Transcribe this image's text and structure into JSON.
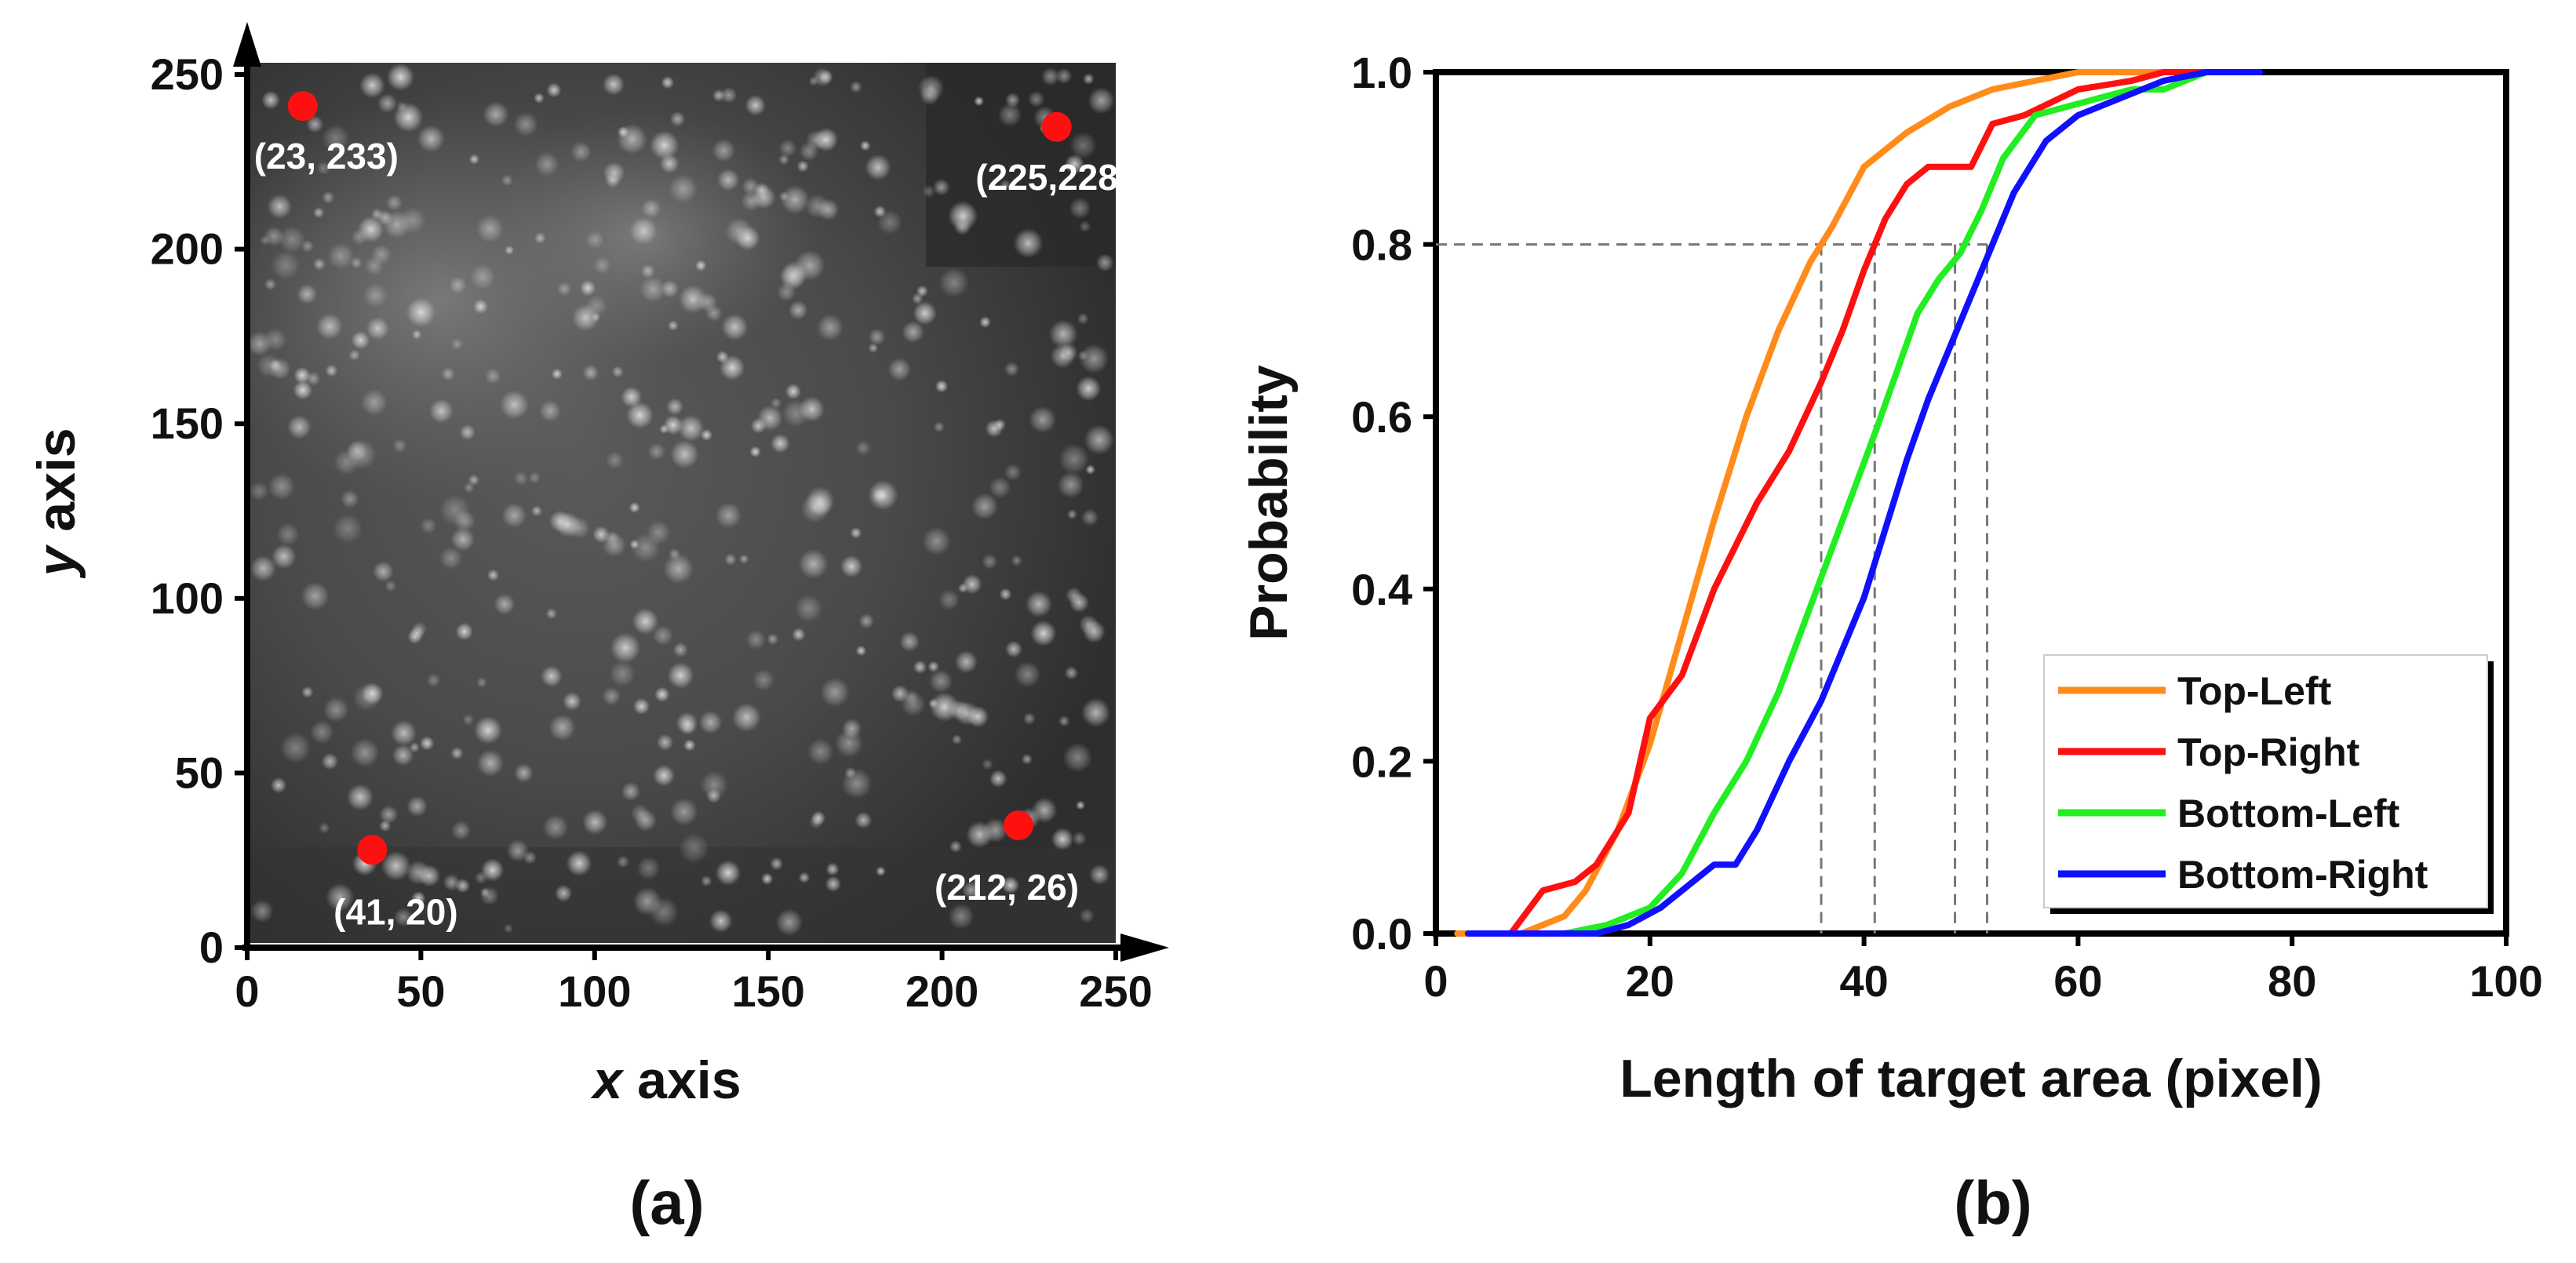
{
  "chart_data": [
    {
      "type": "scatter",
      "panel_label": "(a)",
      "xlabel_var": "x",
      "xlabel_rest": " axis",
      "ylabel_var": "y",
      "ylabel_rest": " axis",
      "xlim": [
        0,
        250
      ],
      "ylim": [
        0,
        250
      ],
      "xticks": [
        0,
        50,
        100,
        150,
        200,
        250
      ],
      "yticks": [
        0,
        50,
        100,
        150,
        200,
        250
      ],
      "background": "grayscale fluorescence microscopy image with bright spots",
      "points": [
        {
          "x": 16,
          "y": 241,
          "label": "(23, 233)"
        },
        {
          "x": 233,
          "y": 235,
          "label": "(225,228)"
        },
        {
          "x": 36,
          "y": 28,
          "label": "(41, 20)"
        },
        {
          "x": 222,
          "y": 35,
          "label": "(212, 26)"
        }
      ],
      "point_color": "#ff1010"
    },
    {
      "type": "line",
      "panel_label": "(b)",
      "xlabel": "Length of target area (pixel)",
      "ylabel": "Probability",
      "xlim": [
        0,
        100
      ],
      "ylim": [
        0,
        1.0
      ],
      "xticks": [
        "0",
        "20",
        "40",
        "60",
        "80",
        "100"
      ],
      "yticks": [
        "0.0",
        "0.2",
        "0.4",
        "0.6",
        "0.8",
        "1.0"
      ],
      "reference_level": 0.8,
      "reference_x": [
        36,
        41,
        48.5,
        51.5
      ],
      "legend_position": "bottom-right",
      "series": [
        {
          "name": "Top-Left",
          "color": "#ff8c1a",
          "points": [
            [
              2,
              0
            ],
            [
              8,
              0
            ],
            [
              12,
              0.02
            ],
            [
              14,
              0.05
            ],
            [
              17,
              0.12
            ],
            [
              20,
              0.22
            ],
            [
              23,
              0.35
            ],
            [
              26,
              0.48
            ],
            [
              29,
              0.6
            ],
            [
              32,
              0.7
            ],
            [
              35,
              0.78
            ],
            [
              37,
              0.82
            ],
            [
              40,
              0.89
            ],
            [
              44,
              0.93
            ],
            [
              48,
              0.96
            ],
            [
              52,
              0.98
            ],
            [
              56,
              0.99
            ],
            [
              60,
              1.0
            ],
            [
              70,
              1.0
            ]
          ]
        },
        {
          "name": "Top-Right",
          "color": "#ff1010",
          "points": [
            [
              3,
              0
            ],
            [
              7,
              0
            ],
            [
              10,
              0.05
            ],
            [
              13,
              0.06
            ],
            [
              15,
              0.08
            ],
            [
              18,
              0.14
            ],
            [
              20,
              0.25
            ],
            [
              23,
              0.3
            ],
            [
              26,
              0.4
            ],
            [
              30,
              0.5
            ],
            [
              33,
              0.56
            ],
            [
              36,
              0.64
            ],
            [
              38,
              0.7
            ],
            [
              40,
              0.77
            ],
            [
              42,
              0.83
            ],
            [
              44,
              0.87
            ],
            [
              46,
              0.89
            ],
            [
              50,
              0.89
            ],
            [
              52,
              0.94
            ],
            [
              55,
              0.95
            ],
            [
              60,
              0.98
            ],
            [
              65,
              0.99
            ],
            [
              68,
              1.0
            ],
            [
              72,
              1.0
            ]
          ]
        },
        {
          "name": "Bottom-Left",
          "color": "#22ee22",
          "points": [
            [
              3,
              0
            ],
            [
              12,
              0
            ],
            [
              16,
              0.01
            ],
            [
              20,
              0.03
            ],
            [
              23,
              0.07
            ],
            [
              26,
              0.14
            ],
            [
              29,
              0.2
            ],
            [
              32,
              0.28
            ],
            [
              35,
              0.38
            ],
            [
              38,
              0.48
            ],
            [
              41,
              0.58
            ],
            [
              43,
              0.65
            ],
            [
              45,
              0.72
            ],
            [
              47,
              0.76
            ],
            [
              49,
              0.79
            ],
            [
              51,
              0.84
            ],
            [
              53,
              0.9
            ],
            [
              56,
              0.95
            ],
            [
              59,
              0.96
            ],
            [
              62,
              0.97
            ],
            [
              65,
              0.98
            ],
            [
              68,
              0.98
            ],
            [
              72,
              1.0
            ],
            [
              75,
              1.0
            ]
          ]
        },
        {
          "name": "Bottom-Right",
          "color": "#1010ff",
          "points": [
            [
              3,
              0
            ],
            [
              15,
              0
            ],
            [
              18,
              0.01
            ],
            [
              21,
              0.03
            ],
            [
              24,
              0.06
            ],
            [
              26,
              0.08
            ],
            [
              28,
              0.08
            ],
            [
              30,
              0.12
            ],
            [
              33,
              0.2
            ],
            [
              36,
              0.27
            ],
            [
              38,
              0.33
            ],
            [
              40,
              0.39
            ],
            [
              42,
              0.47
            ],
            [
              44,
              0.55
            ],
            [
              46,
              0.62
            ],
            [
              48,
              0.68
            ],
            [
              50,
              0.74
            ],
            [
              52,
              0.8
            ],
            [
              54,
              0.86
            ],
            [
              57,
              0.92
            ],
            [
              60,
              0.95
            ],
            [
              64,
              0.97
            ],
            [
              68,
              0.99
            ],
            [
              72,
              1.0
            ],
            [
              77,
              1.0
            ]
          ]
        }
      ]
    }
  ]
}
